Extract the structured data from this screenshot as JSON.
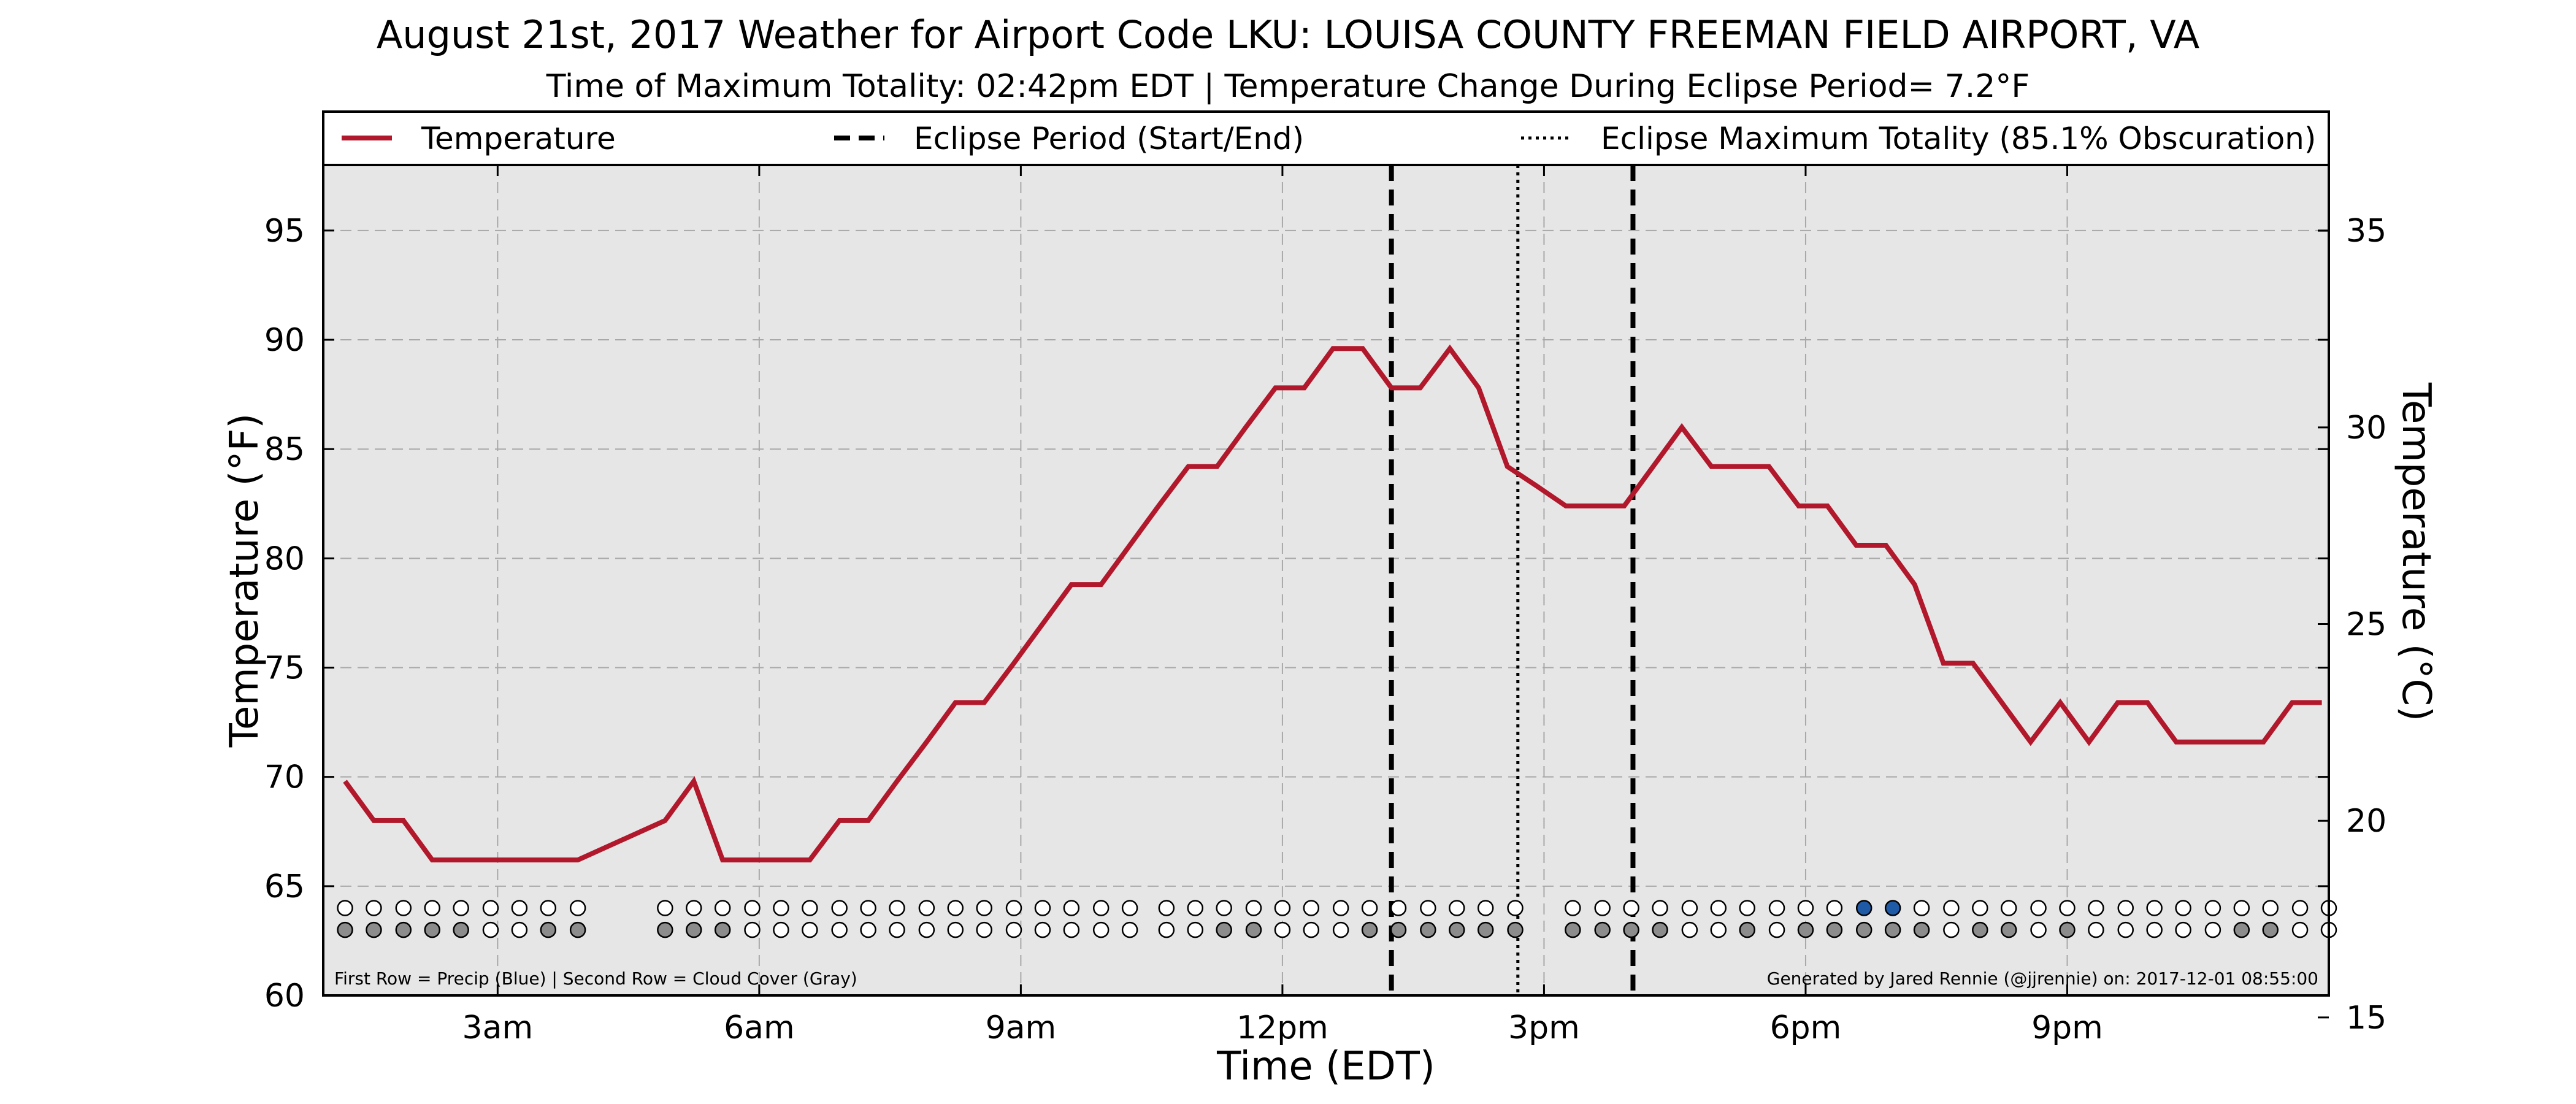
{
  "chart_data": {
    "type": "line",
    "title": "August 21st, 2017 Weather for Airport Code LKU: LOUISA COUNTY FREEMAN FIELD AIRPORT, VA",
    "subtitle": "Time of Maximum Totality: 02:42pm EDT | Temperature Change During Eclipse Period= 7.2°F",
    "xlabel": "Time (EDT)",
    "ylabel": "Temperature (°F)",
    "ylabel_right": "Temperature (°C)",
    "xlim": [
      1.0,
      24.0
    ],
    "ylim": [
      60,
      98
    ],
    "ylim_right": [
      15.56,
      36.67
    ],
    "x_ticks": [
      {
        "x": 3,
        "label": "3am"
      },
      {
        "x": 6,
        "label": "6am"
      },
      {
        "x": 9,
        "label": "9am"
      },
      {
        "x": 12,
        "label": "12pm"
      },
      {
        "x": 15,
        "label": "3pm"
      },
      {
        "x": 18,
        "label": "6pm"
      },
      {
        "x": 21,
        "label": "9pm"
      }
    ],
    "y_ticks": [
      {
        "y": 60,
        "label": "60"
      },
      {
        "y": 65,
        "label": "65"
      },
      {
        "y": 70,
        "label": "70"
      },
      {
        "y": 75,
        "label": "75"
      },
      {
        "y": 80,
        "label": "80"
      },
      {
        "y": 85,
        "label": "85"
      },
      {
        "y": 90,
        "label": "90"
      },
      {
        "y": 95,
        "label": "95"
      }
    ],
    "y_ticks_right": [
      {
        "y": 15,
        "label": "15"
      },
      {
        "y": 20,
        "label": "20"
      },
      {
        "y": 25,
        "label": "25"
      },
      {
        "y": 30,
        "label": "30"
      },
      {
        "y": 35,
        "label": "35"
      }
    ],
    "grid": true,
    "legend": {
      "placement": "top",
      "entries": [
        {
          "label": "Temperature",
          "style": "solid",
          "color": "#b2182b"
        },
        {
          "label": "Eclipse Period (Start/End)",
          "style": "dashed",
          "color": "#000000"
        },
        {
          "label": "Eclipse Maximum Totality (85.1% Obscuration)",
          "style": "dotted",
          "color": "#000000"
        }
      ]
    },
    "series": [
      {
        "name": "Temperature",
        "color": "#b2182b",
        "x": [
          1.25,
          1.58,
          1.92,
          2.25,
          2.58,
          2.92,
          3.25,
          3.58,
          3.92,
          4.92,
          5.25,
          5.58,
          5.92,
          6.25,
          6.58,
          6.92,
          7.25,
          7.58,
          7.92,
          8.25,
          8.58,
          8.92,
          9.25,
          9.58,
          9.92,
          10.25,
          10.58,
          10.92,
          11.25,
          11.58,
          11.92,
          12.25,
          12.58,
          12.92,
          13.25,
          13.58,
          13.92,
          14.25,
          14.58,
          14.92,
          15.25,
          15.58,
          15.92,
          16.25,
          16.58,
          16.92,
          17.25,
          17.58,
          17.92,
          18.25,
          18.58,
          18.92,
          19.25,
          19.58,
          19.92,
          20.25,
          20.58,
          20.92,
          21.25,
          21.58,
          21.92,
          22.25,
          22.58,
          22.92,
          23.25,
          23.58,
          23.92
        ],
        "values": [
          69.8,
          68.0,
          68.0,
          66.2,
          66.2,
          66.2,
          66.2,
          66.2,
          66.2,
          68.0,
          69.8,
          66.2,
          66.2,
          66.2,
          66.2,
          68.0,
          68.0,
          69.8,
          71.6,
          73.4,
          73.4,
          75.2,
          77.0,
          78.8,
          78.8,
          80.6,
          82.4,
          84.2,
          84.2,
          86.0,
          87.8,
          87.8,
          89.6,
          89.6,
          87.8,
          87.8,
          89.6,
          87.8,
          84.2,
          83.3,
          82.4,
          82.4,
          82.4,
          84.2,
          86.0,
          84.2,
          84.2,
          84.2,
          82.4,
          82.4,
          80.6,
          80.6,
          78.8,
          75.2,
          75.2,
          73.4,
          71.6,
          73.4,
          71.6,
          73.4,
          73.4,
          71.6,
          71.6,
          71.6,
          71.6,
          73.4,
          73.4
        ]
      }
    ],
    "eclipse_start": 13.25,
    "eclipse_max": 14.7,
    "eclipse_end": 16.02,
    "indicator_rows": {
      "x": [
        1.25,
        1.58,
        1.92,
        2.25,
        2.58,
        2.92,
        3.25,
        3.58,
        3.92,
        4.92,
        5.25,
        5.58,
        5.92,
        6.25,
        6.58,
        6.92,
        7.25,
        7.58,
        7.92,
        8.25,
        8.58,
        8.92,
        9.25,
        9.58,
        9.92,
        10.25,
        10.67,
        11.0,
        11.33,
        11.67,
        12.0,
        12.33,
        12.67,
        13.0,
        13.33,
        13.67,
        14.0,
        14.33,
        14.67,
        15.33,
        15.67,
        16.0,
        16.33,
        16.67,
        17.0,
        17.33,
        17.67,
        18.0,
        18.33,
        18.67,
        19.0,
        19.33,
        19.67,
        20.0,
        20.33,
        20.67,
        21.0,
        21.33,
        21.67,
        22.0,
        22.33,
        22.67,
        23.0,
        23.33,
        23.67,
        24.0
      ],
      "precip_row_y": 64.0,
      "cloud_row_y": 63.0,
      "precip": [
        0,
        0,
        0,
        0,
        0,
        0,
        0,
        0,
        0,
        0,
        0,
        0,
        0,
        0,
        0,
        0,
        0,
        0,
        0,
        0,
        0,
        0,
        0,
        0,
        0,
        0,
        0,
        0,
        0,
        0,
        0,
        0,
        0,
        0,
        0,
        0,
        0,
        0,
        0,
        0,
        0,
        0,
        0,
        0,
        0,
        0,
        0,
        0,
        0,
        1,
        1,
        0,
        0,
        0,
        0,
        0,
        0,
        0,
        0,
        0,
        0,
        0,
        0,
        0,
        0,
        0
      ],
      "cloud": [
        1,
        1,
        1,
        1,
        1,
        0,
        0,
        1,
        1,
        1,
        1,
        1,
        0,
        0,
        0,
        0,
        0,
        0,
        0,
        0,
        0,
        0,
        0,
        0,
        0,
        0,
        0,
        0,
        1,
        1,
        0,
        0,
        0,
        1,
        1,
        1,
        1,
        1,
        1,
        1,
        1,
        1,
        1,
        0,
        0,
        1,
        0,
        1,
        1,
        1,
        1,
        1,
        0,
        1,
        1,
        0,
        1,
        0,
        0,
        0,
        0,
        0,
        1,
        1,
        0,
        0
      ],
      "precip_color": "#1f5aa6",
      "cloud_color": "#8c8c8c",
      "empty_color": "#ffffff"
    },
    "footnote_left": "First Row = Precip (Blue) | Second Row = Cloud Cover (Gray)",
    "footnote_right": "Generated by Jared Rennie (@jjrennie) on: 2017-12-01 08:55:00"
  }
}
